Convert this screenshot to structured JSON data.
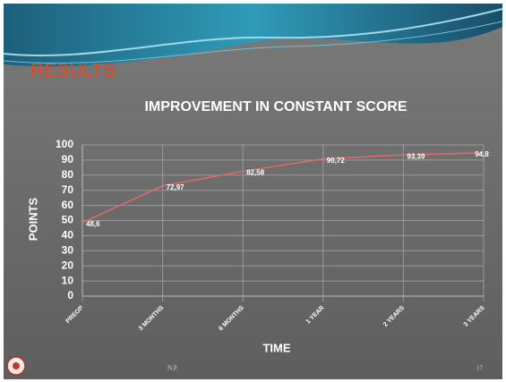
{
  "slide": {
    "heading": "RESULTS",
    "footer": "N.P.",
    "page_number": "17"
  },
  "chart_data": {
    "type": "line",
    "title": "IMPROVEMENT IN CONSTANT SCORE",
    "x_label": "TIME",
    "y_label": "POINTS",
    "categories": [
      "PREOP",
      "3 MONTHS",
      "6 MONTHS",
      "1 YEAR",
      "2 YEARS",
      "3 YEARS"
    ],
    "values": [
      48.6,
      72.97,
      82.58,
      90.72,
      93.39,
      94.8
    ],
    "value_labels": [
      "48,6",
      "72,97",
      "82,58",
      "90,72",
      "93,39",
      "94,8"
    ],
    "color": "#e46a66",
    "ylim": [
      0,
      100
    ],
    "yticks": [
      0,
      10,
      20,
      30,
      40,
      50,
      60,
      70,
      80,
      90,
      100
    ],
    "grid": true
  }
}
